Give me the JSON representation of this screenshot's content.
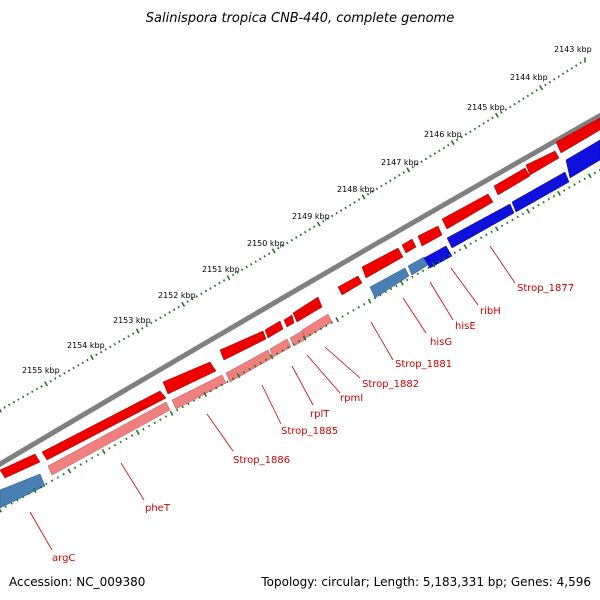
{
  "title": "Salinispora tropica CNB-440, complete genome",
  "footer": {
    "accession": "Accession: NC_009380",
    "summary": "Topology: circular; Length: 5,183,331 bp; Genes: 4,596"
  },
  "kbp_labels": [
    "2143 kbp",
    "2144 kbp",
    "2145 kbp",
    "2146 kbp",
    "2147 kbp",
    "2148 kbp",
    "2149 kbp",
    "2150 kbp",
    "2151 kbp",
    "2152 kbp",
    "2153 kbp",
    "2154 kbp",
    "2155 kbp"
  ],
  "gene_labels": [
    "Strop_1877",
    "ribH",
    "hisE",
    "hisG",
    "Strop_1881",
    "Strop_1882",
    "rpmI",
    "rplT",
    "Strop_1885",
    "Strop_1886",
    "pheT",
    "argC"
  ],
  "colors": {
    "backbone": "#808080",
    "forward_cds": "#ee0000",
    "reverse_cds": "#1010dd",
    "forward_rna": "#f08080",
    "reverse_rna": "#4a7fb5",
    "label": "#cc0000",
    "tick": "#1a7a1a"
  }
}
